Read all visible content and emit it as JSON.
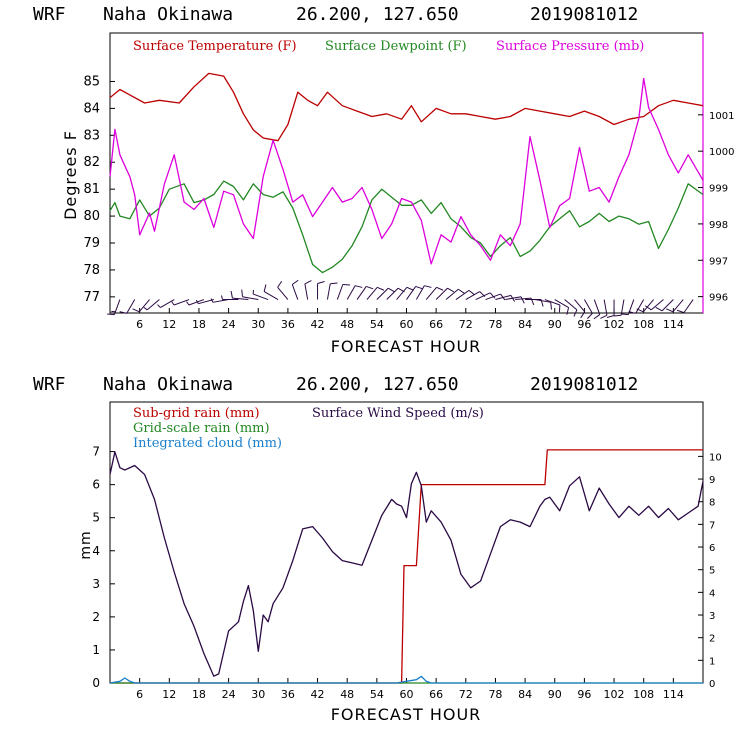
{
  "colors": {
    "temperature": "#bb0000",
    "dewpoint": "#228822",
    "pressure": "#dd00dd",
    "wind_barb": "#2a0a44",
    "subgrid": "#bb0000",
    "gridscale": "#228822",
    "cloud": "#1a7fcc",
    "wind_speed": "#2a0a44"
  },
  "chart_data": [
    {
      "type": "line",
      "header": {
        "model": "WRF",
        "location": "Naha Okinawa",
        "coords": "26.200, 127.650",
        "init": "2019081012"
      },
      "xlabel": "FORECAST HOUR",
      "ylabel": "Degrees F",
      "xlim": [
        0,
        120
      ],
      "ylim": [
        76.4,
        86.8
      ],
      "y2lim": [
        995.55,
        1003.25
      ],
      "x_ticks": [
        6,
        12,
        18,
        24,
        30,
        36,
        42,
        48,
        54,
        60,
        66,
        72,
        78,
        84,
        90,
        96,
        102,
        108,
        114
      ],
      "x_tick_labels": [
        "6",
        "12",
        "18",
        "24",
        "30",
        "36",
        "42",
        "48",
        "54",
        "60",
        "66",
        "72",
        "78",
        "84",
        "90",
        "96",
        "102",
        "108",
        "114"
      ],
      "y_ticks": [
        77,
        78,
        79,
        80,
        81,
        82,
        83,
        84,
        85
      ],
      "y_tick_labels": [
        "77",
        "78",
        "79",
        "80",
        "81",
        "82",
        "83",
        "84",
        "85"
      ],
      "y2_ticks": [
        996,
        997,
        998,
        999,
        1000,
        1001
      ],
      "y2_tick_labels": [
        "996",
        "997",
        "998",
        "999",
        "1000",
        "1001"
      ],
      "series": [
        {
          "name": "Surface Temperature (F)",
          "axis": "left",
          "color_key": "temperature",
          "x": [
            0,
            2,
            4,
            7,
            10,
            14,
            17,
            20,
            23,
            25,
            27,
            29,
            31,
            34,
            36,
            38,
            40,
            42,
            44,
            47,
            50,
            53,
            56,
            59,
            61,
            63,
            66,
            69,
            72,
            75,
            78,
            81,
            84,
            87,
            90,
            93,
            96,
            99,
            102,
            105,
            108,
            111,
            114,
            117,
            120
          ],
          "values": [
            84.4,
            84.7,
            84.5,
            84.2,
            84.3,
            84.2,
            84.8,
            85.3,
            85.2,
            84.6,
            83.8,
            83.2,
            82.9,
            82.8,
            83.4,
            84.6,
            84.3,
            84.1,
            84.6,
            84.1,
            83.9,
            83.7,
            83.8,
            83.6,
            84.1,
            83.5,
            84.0,
            83.8,
            83.8,
            83.7,
            83.6,
            83.7,
            84.0,
            83.9,
            83.8,
            83.7,
            83.9,
            83.7,
            83.4,
            83.6,
            83.7,
            84.1,
            84.3,
            84.2,
            84.1
          ]
        },
        {
          "name": "Surface Dewpoint (F)",
          "axis": "left",
          "color_key": "dewpoint",
          "x": [
            0,
            1,
            2,
            4,
            6,
            8,
            10,
            12,
            15,
            17,
            19,
            21,
            23,
            25,
            27,
            29,
            31,
            33,
            35,
            37,
            39,
            41,
            43,
            45,
            47,
            49,
            51,
            53,
            55,
            57,
            59,
            61,
            63,
            65,
            67,
            69,
            71,
            73,
            75,
            77,
            79,
            81,
            83,
            85,
            87,
            89,
            91,
            93,
            95,
            97,
            99,
            101,
            103,
            105,
            107,
            109,
            111,
            113,
            115,
            117,
            120
          ],
          "values": [
            80.2,
            80.5,
            80.0,
            79.9,
            80.6,
            80.0,
            80.3,
            81.0,
            81.2,
            80.5,
            80.6,
            80.8,
            81.3,
            81.1,
            80.6,
            81.2,
            80.8,
            80.7,
            80.9,
            80.3,
            79.3,
            78.2,
            77.9,
            78.1,
            78.4,
            78.9,
            79.6,
            80.6,
            81.0,
            80.7,
            80.4,
            80.4,
            80.6,
            80.1,
            80.5,
            79.9,
            79.6,
            79.2,
            79.0,
            78.5,
            78.9,
            79.2,
            78.5,
            78.7,
            79.1,
            79.6,
            79.9,
            80.2,
            79.6,
            79.8,
            80.1,
            79.8,
            80.0,
            79.9,
            79.7,
            79.8,
            78.8,
            79.5,
            80.3,
            81.2,
            80.8
          ]
        },
        {
          "name": "Surface Pressure (mb)",
          "axis": "right",
          "color_key": "pressure",
          "x": [
            0,
            1,
            2,
            3,
            4,
            5,
            6,
            8,
            9,
            11,
            13,
            15,
            17,
            19,
            21,
            23,
            25,
            27,
            29,
            31,
            33,
            35,
            37,
            39,
            41,
            43,
            45,
            47,
            49,
            51,
            53,
            55,
            57,
            59,
            61,
            63,
            65,
            67,
            69,
            71,
            73,
            75,
            77,
            79,
            81,
            83,
            85,
            87,
            89,
            91,
            93,
            95,
            97,
            99,
            101,
            103,
            105,
            107,
            108,
            109,
            111,
            113,
            115,
            117,
            120
          ],
          "values": [
            999.3,
            1000.6,
            999.9,
            999.6,
            999.3,
            998.8,
            997.7,
            998.3,
            997.8,
            999.1,
            999.9,
            998.6,
            998.4,
            998.7,
            997.9,
            998.9,
            998.8,
            998.0,
            997.6,
            999.3,
            1000.3,
            999.5,
            998.6,
            998.8,
            998.2,
            998.6,
            999.0,
            998.6,
            998.7,
            999.0,
            998.4,
            997.6,
            998.0,
            998.7,
            998.6,
            998.1,
            996.9,
            997.7,
            997.5,
            998.2,
            997.7,
            997.4,
            997.0,
            997.7,
            997.4,
            998.0,
            1000.4,
            999.2,
            997.9,
            998.5,
            998.7,
            1000.1,
            998.9,
            999.0,
            998.6,
            999.3,
            999.9,
            1000.9,
            1002.0,
            1001.2,
            1000.6,
            999.9,
            999.4,
            999.9,
            999.2
          ]
        }
      ],
      "legend": [
        "Surface Temperature (F)",
        "Surface Dewpoint (F)",
        "Surface Pressure (mb)"
      ],
      "wind_barbs": {
        "x": [
          2,
          5,
          8,
          10,
          13,
          16,
          19,
          21,
          24,
          26,
          28,
          30,
          32,
          34,
          36,
          38,
          40,
          42,
          44,
          46,
          48,
          50,
          52,
          54,
          56,
          58,
          60,
          62,
          64,
          66,
          68,
          70,
          72,
          74,
          76,
          78,
          80,
          82,
          84,
          86,
          88,
          90,
          92,
          94,
          96,
          98,
          100,
          102,
          104,
          106,
          108,
          110,
          112,
          114,
          116,
          118
        ],
        "direction_deg": [
          200,
          210,
          220,
          230,
          240,
          250,
          250,
          255,
          260,
          270,
          275,
          280,
          290,
          300,
          320,
          340,
          350,
          0,
          10,
          20,
          30,
          35,
          40,
          45,
          45,
          40,
          35,
          30,
          40,
          45,
          50,
          55,
          60,
          65,
          70,
          75,
          80,
          85,
          90,
          100,
          110,
          120,
          130,
          140,
          150,
          160,
          170,
          180,
          190,
          200,
          210,
          220,
          230,
          225,
          220,
          215
        ],
        "speed_kt": [
          15,
          12,
          10,
          8,
          5,
          5,
          8,
          5,
          5,
          8,
          10,
          10,
          8,
          10,
          10,
          12,
          10,
          10,
          10,
          10,
          10,
          10,
          10,
          10,
          10,
          12,
          12,
          12,
          12,
          10,
          10,
          10,
          10,
          10,
          10,
          10,
          10,
          10,
          10,
          10,
          10,
          12,
          12,
          12,
          12,
          12,
          12,
          12,
          12,
          10,
          10,
          12,
          12,
          12,
          12,
          12
        ]
      }
    },
    {
      "type": "line",
      "header": {
        "model": "WRF",
        "location": "Naha Okinawa",
        "coords": "26.200, 127.650",
        "init": "2019081012"
      },
      "xlabel": "FORECAST HOUR",
      "ylabel": "mm",
      "xlim": [
        0,
        120
      ],
      "ylim": [
        0,
        8.5
      ],
      "y2lim": [
        0,
        12.4
      ],
      "x_ticks": [
        6,
        12,
        18,
        24,
        30,
        36,
        42,
        48,
        54,
        60,
        66,
        72,
        78,
        84,
        90,
        96,
        102,
        108,
        114
      ],
      "x_tick_labels": [
        "6",
        "12",
        "18",
        "24",
        "30",
        "36",
        "42",
        "48",
        "54",
        "60",
        "66",
        "72",
        "78",
        "84",
        "90",
        "96",
        "102",
        "108",
        "114"
      ],
      "y_ticks": [
        0,
        1,
        2,
        3,
        4,
        5,
        6,
        7
      ],
      "y_tick_labels": [
        "0",
        "1",
        "2",
        "3",
        "4",
        "5",
        "6",
        "7"
      ],
      "y2_ticks": [
        0,
        1,
        2,
        3,
        4,
        5,
        6,
        7,
        8,
        9,
        10
      ],
      "y2_tick_labels": [
        "0",
        "1",
        "2",
        "3",
        "4",
        "5",
        "6",
        "7",
        "8",
        "9",
        "10"
      ],
      "series": [
        {
          "name": "Sub-grid rain (mm)",
          "axis": "left",
          "color_key": "subgrid",
          "step": true,
          "x": [
            0,
            59,
            59.5,
            62,
            63,
            88,
            88.5,
            120
          ],
          "values": [
            0,
            0,
            3.55,
            3.55,
            6.0,
            6.0,
            7.05,
            7.05
          ]
        },
        {
          "name": "Grid-scale rain (mm)",
          "axis": "left",
          "color_key": "gridscale",
          "x": [
            0,
            120
          ],
          "values": [
            0,
            0
          ]
        },
        {
          "name": "Integrated cloud (mm)",
          "axis": "left",
          "color_key": "cloud",
          "x": [
            0,
            2,
            3,
            4,
            5,
            58,
            60,
            62,
            63,
            64,
            65,
            120
          ],
          "values": [
            0,
            0.05,
            0.15,
            0.05,
            0,
            0,
            0.05,
            0.1,
            0.2,
            0.05,
            0,
            0
          ]
        },
        {
          "name": "Surface Wind Speed (m/s)",
          "axis": "right",
          "color_key": "wind_speed",
          "x": [
            0,
            1,
            2,
            3,
            5,
            7,
            9,
            11,
            13,
            15,
            17,
            19,
            21,
            22,
            24,
            26,
            27,
            28,
            29,
            30,
            31,
            32,
            33,
            35,
            37,
            39,
            41,
            43,
            45,
            47,
            49,
            51,
            53,
            55,
            57,
            58,
            59,
            60,
            61,
            62,
            63,
            64,
            65,
            67,
            69,
            71,
            73,
            75,
            77,
            79,
            81,
            83,
            85,
            87,
            88,
            89,
            91,
            93,
            95,
            97,
            99,
            101,
            103,
            105,
            107,
            109,
            111,
            113,
            115,
            117,
            119,
            120
          ],
          "values": [
            9.2,
            10.2,
            9.5,
            9.4,
            9.6,
            9.2,
            8.1,
            6.4,
            4.9,
            3.5,
            2.5,
            1.3,
            0.3,
            0.4,
            2.3,
            2.7,
            3.6,
            4.3,
            3.2,
            1.4,
            3.0,
            2.7,
            3.5,
            4.2,
            5.4,
            6.8,
            6.9,
            6.4,
            5.8,
            5.4,
            5.3,
            5.2,
            6.3,
            7.4,
            8.1,
            7.9,
            7.8,
            7.3,
            8.8,
            9.3,
            8.7,
            7.1,
            7.6,
            7.1,
            6.3,
            4.8,
            4.2,
            4.5,
            5.7,
            6.9,
            7.2,
            7.1,
            6.9,
            7.8,
            8.1,
            8.2,
            7.6,
            8.7,
            9.1,
            7.6,
            8.6,
            7.9,
            7.3,
            7.8,
            7.4,
            7.8,
            7.3,
            7.7,
            7.2,
            7.5,
            7.8,
            8.9
          ]
        }
      ],
      "legend": [
        "Sub-grid rain (mm)",
        "Surface Wind Speed (m/s)",
        "Grid-scale rain (mm)",
        "Integrated cloud (mm)"
      ]
    }
  ]
}
